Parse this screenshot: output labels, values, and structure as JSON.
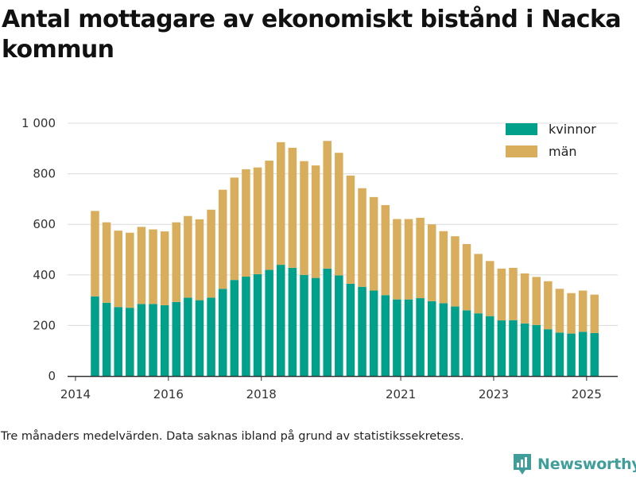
{
  "title": "Antal mottagare av ekonomiskt bistånd i Nacka kommun",
  "footnote": "Tre månaders medelvärden. Data saknas ibland på grund av statistikssekretess.",
  "brand": {
    "name": "Newsworthy",
    "color": "#3f9d9a"
  },
  "chart_data": {
    "type": "bar",
    "stacked": true,
    "x_unit": "year",
    "x": [
      2014.42,
      2014.67,
      2014.92,
      2015.17,
      2015.42,
      2015.67,
      2015.92,
      2016.17,
      2016.42,
      2016.67,
      2016.92,
      2017.17,
      2017.42,
      2017.67,
      2017.92,
      2018.17,
      2018.42,
      2018.67,
      2018.92,
      2019.17,
      2019.42,
      2019.67,
      2019.92,
      2020.17,
      2020.42,
      2020.67,
      2020.92,
      2021.17,
      2021.42,
      2021.67,
      2021.92,
      2022.17,
      2022.42,
      2022.67,
      2022.92,
      2023.17,
      2023.42,
      2023.67,
      2023.92,
      2024.17,
      2024.42,
      2024.67,
      2024.92,
      2025.17
    ],
    "series": [
      {
        "name": "kvinnor",
        "color": "#00a08b",
        "values": [
          315,
          290,
          273,
          270,
          285,
          285,
          280,
          293,
          310,
          300,
          310,
          345,
          380,
          393,
          403,
          420,
          440,
          428,
          400,
          388,
          425,
          398,
          365,
          353,
          338,
          320,
          303,
          303,
          308,
          296,
          288,
          275,
          260,
          248,
          237,
          220,
          221,
          208,
          202,
          185,
          172,
          168,
          175,
          170
        ]
      },
      {
        "name": "män",
        "color": "#d8ae5d",
        "values": [
          338,
          318,
          302,
          297,
          305,
          295,
          292,
          315,
          323,
          320,
          348,
          392,
          405,
          425,
          422,
          432,
          485,
          475,
          450,
          445,
          505,
          485,
          428,
          390,
          370,
          356,
          318,
          318,
          318,
          304,
          285,
          278,
          262,
          235,
          218,
          205,
          207,
          198,
          190,
          190,
          173,
          160,
          163,
          152
        ]
      }
    ],
    "xticks": [
      2014,
      2016,
      2018,
      2021,
      2023,
      2025
    ],
    "yticks": [
      0,
      200,
      400,
      600,
      800,
      1000
    ],
    "ytick_labels": [
      "0",
      "200",
      "400",
      "600",
      "800",
      "1 000"
    ],
    "xlim": [
      2013.83,
      2025.67
    ],
    "ylim": [
      0,
      1000
    ],
    "grid": "horizontal",
    "legend_position": "top-right",
    "xlabel": "",
    "ylabel": ""
  }
}
